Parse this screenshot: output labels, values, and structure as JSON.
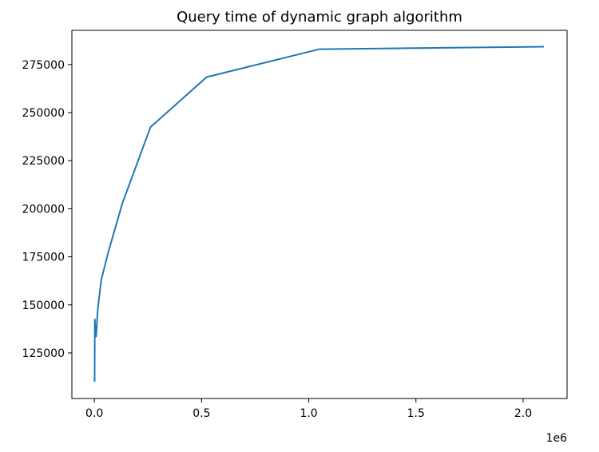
{
  "chart_data": {
    "type": "line",
    "title": "Query time of dynamic graph algorithm",
    "xlabel": "",
    "ylabel": "",
    "x_offset_label": "1e6",
    "x_scale": 1000000,
    "xlim": [
      -105000,
      2205000
    ],
    "ylim": [
      101300,
      292800
    ],
    "x_ticks": [
      0,
      500000,
      1000000,
      1500000,
      2000000
    ],
    "x_tick_labels": [
      "0.0",
      "0.5",
      "1.0",
      "1.5",
      "2.0"
    ],
    "y_ticks": [
      125000,
      150000,
      175000,
      200000,
      225000,
      250000,
      275000
    ],
    "y_tick_labels": [
      "125000",
      "150000",
      "175000",
      "200000",
      "225000",
      "250000",
      "275000"
    ],
    "grid": false,
    "color": "#1f77b4",
    "series": [
      {
        "x": [
          1000,
          2000,
          4000,
          8000,
          16000,
          32000,
          65000,
          131000,
          262000,
          524000,
          1049000,
          2097000
        ],
        "y": [
          110000,
          142500,
          138000,
          133500,
          148000,
          163000,
          177500,
          203000,
          242500,
          268500,
          283000,
          284300
        ]
      }
    ]
  }
}
